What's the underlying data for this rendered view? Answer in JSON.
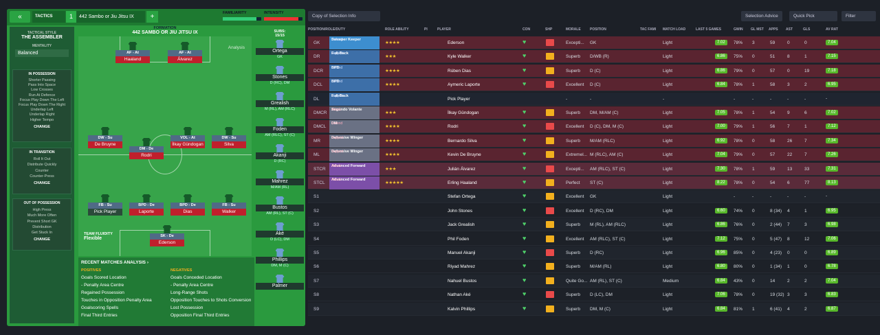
{
  "topbar": {
    "back_icon": "«",
    "tactics_label": "TACTICS",
    "tactic_number": "1",
    "tactic_name": "442 Sambo or Jiu Jitsu IX",
    "add": "+",
    "familiarity": "FAMILIARITY",
    "intensity": "INTENSITY"
  },
  "side": {
    "style_label": "TACTICAL STYLE",
    "style": "THE ASSEMBLER",
    "mentality_label": "MENTALITY",
    "mentality": "Balanced",
    "in_possession": "IN POSSESSION",
    "ip_items": [
      "Shorter Passing",
      "Pass Into Space",
      "Low Crosses",
      "Run At Defence",
      "Focus Play Down The Left",
      "Focus Play Down The Right",
      "Underlap Left",
      "Underlap Right",
      "Higher Tempo"
    ],
    "in_transition": "IN TRANSITION",
    "it_items": [
      "Roll It Out",
      "Distribute Quickly",
      "Counter",
      "Counter-Press"
    ],
    "out_possession": "OUT OF POSSESSION",
    "op_items": [
      "High Press",
      "Much More Often",
      "Prevent Short GK",
      "Distribution",
      "Get Stuck In"
    ],
    "change": "CHANGE"
  },
  "formation": {
    "label": "FORMATION",
    "name": "442 SAMBO OR JIU JITSU IX",
    "analysis": "Analysis",
    "fluidity_label": "TEAM FLUIDITY",
    "fluidity": "Flexible"
  },
  "pitch": [
    {
      "tag": "AF - At",
      "name": "Haaland"
    },
    {
      "tag": "AF - At",
      "name": "Álvarez"
    },
    {
      "tag": "DW - Su",
      "name": "De Bruyne"
    },
    {
      "tag": "DM - De",
      "name": "Rodri"
    },
    {
      "tag": "VOL - At",
      "name": "İlkay Gündogan"
    },
    {
      "tag": "DW - Su",
      "name": "Silva"
    },
    {
      "tag": "FB - Su",
      "name": "Pick Player"
    },
    {
      "tag": "BPD - De",
      "name": "Laporte"
    },
    {
      "tag": "BPD - De",
      "name": "Dias"
    },
    {
      "tag": "FB - Su",
      "name": "Walker"
    },
    {
      "tag": "SK - De",
      "name": "Ederson"
    }
  ],
  "subs": {
    "label": "SUBS:",
    "count": "15/15",
    "list": [
      {
        "num": "18",
        "name": "Ortega",
        "pos": "GK"
      },
      {
        "num": "",
        "name": "Stones",
        "pos": "D (RC), DM"
      },
      {
        "num": "10",
        "name": "Grealish",
        "pos": "M (RL), AM (RLC)"
      },
      {
        "num": "47",
        "name": "Foden",
        "pos": "AM (RLC), ST (C)"
      },
      {
        "num": "25",
        "name": "Akanji",
        "pos": "D (RC)"
      },
      {
        "num": "26",
        "name": "Mahrez",
        "pos": "M/AM (RL)"
      },
      {
        "num": "",
        "name": "Bustos",
        "pos": "AM (RL), ST (C)"
      },
      {
        "num": "",
        "name": "Aké",
        "pos": "D (LC), DM"
      },
      {
        "num": "",
        "name": "Phillips",
        "pos": "DM, M (C)"
      },
      {
        "num": "",
        "name": "Palmer",
        "pos": ""
      }
    ]
  },
  "recent": {
    "title": "RECENT MATCHES ANALYSIS ›",
    "positives": "POSITIVES",
    "negatives": "NEGATIVES",
    "pos_items": [
      "Goals Scored Location",
      "- Penalty Area Centre",
      "Regained Possession",
      "Touches in Opposition Penalty Area",
      "Goalscoring Spells",
      "Final Third Entries"
    ],
    "neg_items": [
      "Goals Conceded Location",
      "- Penalty Area Centre",
      "Long-Range Shots",
      "Opposition Touches to Shots Conversion",
      "Lost Possession",
      "Opposition Final Third Entries"
    ]
  },
  "right": {
    "copy_btn": "Copy of Selection Info",
    "selection_advice": "Selection Advice",
    "quick_pick": "Quick Pick",
    "filter": "Filter",
    "headers": [
      "POSITION/ROLE/DUTY",
      "ROLE ABILITY",
      "PI",
      "PLAYER",
      "CON",
      "SHP",
      "MORALE",
      "POSITION",
      "TAC FAMI",
      "MATCH LOAD",
      "LAST 5 GAMES",
      "GWIN",
      "GL MST",
      "APPS",
      "AST",
      "GLS",
      "AV RAT"
    ]
  },
  "rows": [
    {
      "p": "GK",
      "role": "Sweeper Keeper",
      "duty": "Defend",
      "c": "gk",
      "stars": "★★★★",
      "name": "Ederson",
      "mor": "Excepti...",
      "posn": "GK",
      "load": "Light",
      "l5": "7.02",
      "gw": "78%",
      "gl": "3",
      "apps": "59",
      "ast": "0",
      "gls": "0",
      "av": "7.04"
    },
    {
      "p": "DR",
      "role": "Full-Back",
      "duty": "Support",
      "c": "def",
      "stars": "★★★",
      "name": "Kyle Walker",
      "mor": "Superb",
      "posn": "D/WB (R)",
      "load": "Light",
      "l5": "6.86",
      "gw": "75%",
      "gl": "0",
      "apps": "51",
      "ast": "8",
      "gls": "1",
      "av": "7.15"
    },
    {
      "p": "DCR",
      "role": "BPD",
      "duty": "Defend",
      "c": "def",
      "stars": "★★★★",
      "name": "Rúben Dias",
      "mor": "Superb",
      "posn": "D (C)",
      "load": "Light",
      "l5": "6.86",
      "gw": "79%",
      "gl": "0",
      "apps": "57",
      "ast": "0",
      "gls": "19",
      "av": "7.18"
    },
    {
      "p": "DCL",
      "role": "BPD",
      "duty": "Defend",
      "c": "def",
      "stars": "★★★★",
      "name": "Aymeric Laporte",
      "mor": "Excellent",
      "posn": "D (C)",
      "load": "Light",
      "l5": "6.84",
      "gw": "78%",
      "gl": "1",
      "apps": "58",
      "ast": "3",
      "gls": "2",
      "av": "6.95"
    },
    {
      "p": "DL",
      "role": "Full-Back",
      "duty": "Support",
      "c": "def",
      "stars": "",
      "name": "Pick Player",
      "mor": "-",
      "posn": "-",
      "load": "-",
      "l5": "",
      "gw": "-",
      "gl": "-",
      "apps": "-",
      "ast": "-",
      "gls": "-",
      "av": "-"
    },
    {
      "p": "DMCR",
      "role": "Segundo Volante",
      "duty": "Attack",
      "c": "mid",
      "stars": "★★★",
      "name": "İlkay Gündogan",
      "mor": "Superb",
      "posn": "DM, M/AM (C)",
      "load": "Light",
      "l5": "7.05",
      "gw": "78%",
      "gl": "1",
      "apps": "54",
      "ast": "9",
      "gls": "6",
      "av": "7.02"
    },
    {
      "p": "DMCL",
      "role": "DM",
      "duty": "Defend",
      "c": "mid",
      "stars": "★★★★",
      "name": "Rodri",
      "mor": "Excellent",
      "posn": "D (C), DM, M (C)",
      "load": "Light",
      "l5": "7.00",
      "gw": "79%",
      "gl": "1",
      "apps": "56",
      "ast": "7",
      "gls": "1",
      "av": "7.12"
    },
    {
      "p": "MR",
      "role": "Defensive Winger",
      "duty": "Support",
      "c": "mid",
      "stars": "★★★★",
      "name": "Bernardo Silva",
      "mor": "Superb",
      "posn": "M/AM (RLC)",
      "load": "Light",
      "l5": "6.92",
      "gw": "78%",
      "gl": "0",
      "apps": "58",
      "ast": "26",
      "gls": "7",
      "av": "7.34"
    },
    {
      "p": "ML",
      "role": "Defensive Winger",
      "duty": "Support",
      "c": "mid",
      "stars": "★★★★",
      "name": "Kevin De Bruyne",
      "mor": "Extremel...",
      "posn": "M (RLC), AM (C)",
      "load": "Light",
      "l5": "7.04",
      "gw": "79%",
      "gl": "0",
      "apps": "57",
      "ast": "22",
      "gls": "7",
      "av": "7.26"
    },
    {
      "p": "STCR",
      "role": "Advanced Forward",
      "duty": "Attack",
      "c": "att",
      "stars": "★★★",
      "name": "Julián Álvarez",
      "mor": "Excepti...",
      "posn": "AM (RLC), ST (C)",
      "load": "Light",
      "l5": "7.30",
      "gw": "78%",
      "gl": "1",
      "apps": "59",
      "ast": "13",
      "gls": "33",
      "av": "7.31"
    },
    {
      "p": "STCL",
      "role": "Advanced Forward",
      "duty": "Attack",
      "c": "att",
      "stars": "★★★★★",
      "name": "Erling Haaland",
      "mor": "Perfect",
      "posn": "ST (C)",
      "load": "Light",
      "l5": "8.22",
      "gw": "78%",
      "gl": "0",
      "apps": "54",
      "ast": "6",
      "gls": "77",
      "av": "8.13"
    },
    {
      "p": "S1",
      "role": "",
      "duty": "",
      "c": "",
      "stars": "",
      "name": "Stefan Ortega",
      "mor": "Excellent",
      "posn": "GK",
      "load": "Light",
      "l5": "",
      "gw": "-",
      "gl": "-",
      "apps": "-",
      "ast": "-",
      "gls": "-",
      "av": "-"
    },
    {
      "p": "S2",
      "role": "",
      "duty": "",
      "c": "",
      "stars": "",
      "name": "John Stones",
      "mor": "Excellent",
      "posn": "D (RC), DM",
      "load": "Light",
      "l5": "6.60",
      "gw": "74%",
      "gl": "0",
      "apps": "8 (34)",
      "ast": "4",
      "gls": "1",
      "av": "6.95"
    },
    {
      "p": "S3",
      "role": "",
      "duty": "",
      "c": "",
      "stars": "",
      "name": "Jack Grealish",
      "mor": "Superb",
      "posn": "M (RL), AM (RLC)",
      "load": "Light",
      "l5": "6.86",
      "gw": "76%",
      "gl": "0",
      "apps": "2 (44)",
      "ast": "7",
      "gls": "3",
      "av": "6.98"
    },
    {
      "p": "S4",
      "role": "",
      "duty": "",
      "c": "",
      "stars": "",
      "name": "Phil Foden",
      "mor": "Excellent",
      "posn": "AM (RLC), ST (C)",
      "load": "Light",
      "l5": "7.12",
      "gw": "75%",
      "gl": "0",
      "apps": "5 (47)",
      "ast": "8",
      "gls": "12",
      "av": "7.06"
    },
    {
      "p": "S5",
      "role": "",
      "duty": "",
      "c": "",
      "stars": "",
      "name": "Manuel Akanji",
      "mor": "Superb",
      "posn": "D (RC)",
      "load": "Light",
      "l5": "6.96",
      "gw": "85%",
      "gl": "0",
      "apps": "4 (23)",
      "ast": "0",
      "gls": "0",
      "av": "6.89"
    },
    {
      "p": "S6",
      "role": "",
      "duty": "",
      "c": "",
      "stars": "",
      "name": "Riyad Mahrez",
      "mor": "Superb",
      "posn": "M/AM (RL)",
      "load": "Light",
      "l5": "6.80",
      "gw": "80%",
      "gl": "0",
      "apps": "1 (34)",
      "ast": "1",
      "gls": "0",
      "av": "6.78"
    },
    {
      "p": "S7",
      "role": "",
      "duty": "",
      "c": "",
      "stars": "",
      "name": "Nahuel Bustos",
      "mor": "Quite Go...",
      "posn": "AM (RL), ST (C)",
      "load": "Medium",
      "l5": "6.84",
      "gw": "43%",
      "gl": "0",
      "apps": "14",
      "ast": "2",
      "gls": "2",
      "av": "7.04"
    },
    {
      "p": "S8",
      "role": "",
      "duty": "",
      "c": "",
      "stars": "",
      "name": "Nathan Aké",
      "mor": "Superb",
      "posn": "D (LC), DM",
      "load": "Light",
      "l5": "7.06",
      "gw": "78%",
      "gl": "0",
      "apps": "19 (32)",
      "ast": "3",
      "gls": "3",
      "av": "6.83"
    },
    {
      "p": "S9",
      "role": "",
      "duty": "",
      "c": "",
      "stars": "",
      "name": "Kalvin Phillips",
      "mor": "Superb",
      "posn": "DM, M (C)",
      "load": "Light",
      "l5": "6.84",
      "gw": "81%",
      "gl": "1",
      "apps": "6 (41)",
      "ast": "4",
      "gls": "2",
      "av": "6.87"
    }
  ]
}
